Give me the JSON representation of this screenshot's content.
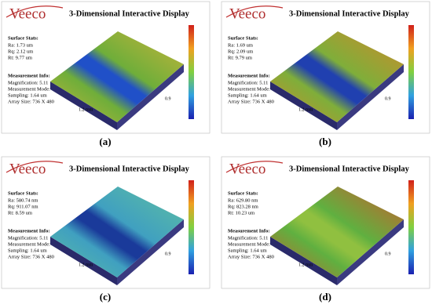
{
  "panels": [
    {
      "label": "(a)",
      "logo": "Veeco",
      "title": "3-Dimensional Interactive Display",
      "stats_heading": "Surface Stats:",
      "stats": [
        "Ra: 1.73 um",
        "Rq: 2.12 um",
        "Rt: 9.77 um"
      ],
      "info_heading": "Measurement Info:",
      "info": [
        "Magnification: 5.11",
        "Measurement Mode: VSI",
        "Sampling: 1.64 um",
        "Array Size: 736 X 480"
      ],
      "x_axis": "1.2 mm",
      "y_axis": "0.9"
    },
    {
      "label": "(b)",
      "logo": "Veeco",
      "title": "3-Dimensional Interactive Display",
      "stats_heading": "Surface Stats:",
      "stats": [
        "Ra: 1.69 um",
        "Rq: 2.09 um",
        "Rt: 9.79 um"
      ],
      "info_heading": "Measurement Info:",
      "info": [
        "Magnification: 5.11",
        "Measurement Mode: VSI",
        "Sampling: 1.64 um",
        "Array Size: 736 X 480"
      ],
      "x_axis": "1.2 mm",
      "y_axis": "0.9"
    },
    {
      "label": "(c)",
      "logo": "Veeco",
      "title": "3-Dimensional Interactive Display",
      "stats_heading": "Surface Stats:",
      "stats": [
        "Ra: 580.74 nm",
        "Rq: 911.07 nm",
        "Rt: 8.59 um"
      ],
      "info_heading": "Measurement Info:",
      "info": [
        "Magnification: 5.11",
        "Measurement Mode: VSI",
        "Sampling: 1.64 um",
        "Array Size: 736 X 480"
      ],
      "x_axis": "1.2 mm",
      "y_axis": "0.9"
    },
    {
      "label": "(d)",
      "logo": "Veeco",
      "title": "3-Dimensional Interactive Display",
      "stats_heading": "Surface Stats:",
      "stats": [
        "Ra: 629.80 nm",
        "Rq: 823.28 nm",
        "Rt: 10.23 um"
      ],
      "info_heading": "Measurement Info:",
      "info": [
        "Magnification: 5.11",
        "Measurement Mode: VSI",
        "Sampling: 1.64 um",
        "Array Size: 736 X 480"
      ],
      "x_axis": "1.2 mm",
      "y_axis": "0.9"
    }
  ]
}
